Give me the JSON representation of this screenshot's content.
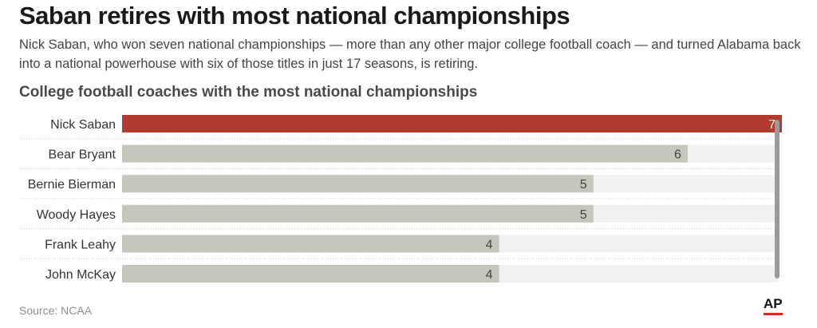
{
  "header": {
    "title": "Saban retires with most national championships",
    "deck": "Nick Saban, who won seven national championships — more than any other major college football coach — and turned Alabama back into a national powerhouse with six of those titles in just 17 seasons, is retiring."
  },
  "chart_data": {
    "type": "bar",
    "orientation": "horizontal",
    "title": "College football coaches with the most national championships",
    "xlabel": "",
    "ylabel": "",
    "categories": [
      "Nick Saban",
      "Bear Bryant",
      "Bernie Bierman",
      "Woody Hayes",
      "Frank Leahy",
      "John McKay"
    ],
    "values": [
      7,
      6,
      5,
      5,
      4,
      4
    ],
    "xlim": [
      0,
      7
    ],
    "highlight_category": "Nick Saban",
    "colors": {
      "highlight": "#b23a2e",
      "bar": "#c7c6bc",
      "track": "#f1f1f1",
      "label": "#333333",
      "value": "#444444",
      "separator": "#c8c8c8",
      "scroll_indicator": "#9a9a9a"
    },
    "grid": false,
    "legend": "none"
  },
  "footer": {
    "source": "Source: NCAA",
    "logo_text": "AP",
    "logo_accent": "#d62b20"
  }
}
